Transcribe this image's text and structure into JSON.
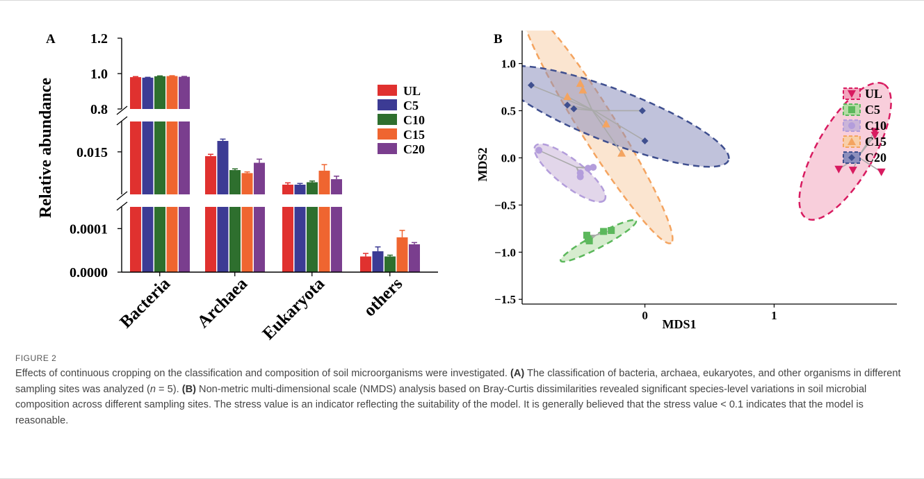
{
  "figure": {
    "label": "FIGURE 2",
    "caption": [
      {
        "t": "Effects of continuous cropping on the classification and composition of soil microorganisms were investigated. "
      },
      {
        "t": "(A)",
        "b": true
      },
      {
        "t": " The classification of bacteria, archaea, eukaryotes, and other organisms in different sampling sites was analyzed ("
      },
      {
        "t": "n",
        "i": true
      },
      {
        "t": " = 5). "
      },
      {
        "t": "(B)",
        "b": true
      },
      {
        "t": " Non-metric multi-dimensional scale (NMDS) analysis based on Bray-Curtis dissimilarities revealed significant species-level variations in soil microbial composition across different sampling sites. The stress value is an indicator reflecting the suitability of the model. It is generally believed that the stress value < 0.1 indicates that the model is reasonable."
      }
    ]
  },
  "groups": [
    "UL",
    "C5",
    "C10",
    "C15",
    "C20"
  ],
  "colors": {
    "bar": [
      "#e0312f",
      "#3c3b94",
      "#2e6f2e",
      "#ef6530",
      "#7a3e8e"
    ],
    "nmds_fill": [
      "#f2a5bd",
      "#b5dca5",
      "#cbb5d8",
      "#f8cfaa",
      "#8d8fbd"
    ],
    "nmds_stroke": [
      "#d81b60",
      "#5cb85c",
      "#b39ddb",
      "#f4a460",
      "#3f4f8f"
    ]
  },
  "chart_data": [
    {
      "panel": "A",
      "type": "bar",
      "ylabel": "Relative abundance",
      "categories": [
        "Bacteria",
        "Archaea",
        "Eukaryota",
        "others"
      ],
      "broken_axis": true,
      "segments": [
        {
          "ylim": [
            0.8,
            1.2
          ],
          "ticks": [
            "0.8",
            "1.0",
            "1.2"
          ]
        },
        {
          "ylim": [
            0.008,
            0.02
          ],
          "ticks": [
            "0.015"
          ]
        },
        {
          "ylim": [
            0,
            0.00015
          ],
          "ticks": [
            "0.0000",
            "0.0001"
          ]
        }
      ],
      "series": [
        {
          "name": "UL",
          "values": [
            0.98,
            0.0143,
            0.0096,
            3.6e-05
          ],
          "errors": [
            0.003,
            0.0003,
            0.0003,
            7e-06
          ]
        },
        {
          "name": "C5",
          "values": [
            0.977,
            0.0168,
            0.0096,
            4.8e-05
          ],
          "errors": [
            0.002,
            0.0003,
            0.0002,
            1e-05
          ]
        },
        {
          "name": "C10",
          "values": [
            0.985,
            0.012,
            0.01,
            3.6e-05
          ],
          "errors": [
            0.002,
            0.0002,
            0.0002,
            3e-06
          ]
        },
        {
          "name": "C15",
          "values": [
            0.986,
            0.0115,
            0.0119,
            8e-05
          ],
          "errors": [
            0.002,
            0.0002,
            0.001,
            1.6e-05
          ]
        },
        {
          "name": "C20",
          "values": [
            0.982,
            0.0132,
            0.0105,
            6.4e-05
          ],
          "errors": [
            0.002,
            0.0006,
            0.0005,
            4e-06
          ]
        }
      ],
      "legend_position": "right"
    },
    {
      "panel": "B",
      "type": "scatter",
      "xlabel": "MDS1",
      "ylabel": "MDS2",
      "xlim": [
        -0.95,
        1.95
      ],
      "ylim": [
        -1.55,
        1.35
      ],
      "xticks": [
        "0",
        "1"
      ],
      "yticks": [
        "1.0",
        "0.5",
        "0.0",
        "−0.5",
        "−1.0",
        "−1.5"
      ],
      "legend_position": "right",
      "series": [
        {
          "name": "UL",
          "marker": "triangle-down",
          "points": [
            [
              1.78,
              0.28
            ],
            [
              1.78,
              0.24
            ],
            [
              1.5,
              -0.12
            ],
            [
              1.61,
              -0.13
            ],
            [
              1.83,
              -0.15
            ]
          ],
          "centroid": [
            1.65,
            0.01
          ],
          "ellipse": {
            "center": [
              1.55,
              0.07
            ],
            "rx": 0.6,
            "ry": 0.3,
            "angle": 60
          }
        },
        {
          "name": "C5",
          "marker": "square",
          "points": [
            [
              -0.45,
              -0.82
            ],
            [
              -0.44,
              -0.86
            ],
            [
              -0.43,
              -0.88
            ],
            [
              -0.32,
              -0.78
            ],
            [
              -0.26,
              -0.77
            ]
          ],
          "centroid": [
            -0.38,
            -0.82
          ],
          "ellipse": {
            "center": [
              -0.36,
              -0.88
            ],
            "rx": 0.33,
            "ry": 0.07,
            "angle": 28
          }
        },
        {
          "name": "C10",
          "marker": "circle",
          "points": [
            [
              -0.82,
              0.08
            ],
            [
              -0.5,
              -0.16
            ],
            [
              -0.5,
              -0.2
            ],
            [
              -0.44,
              -0.11
            ],
            [
              -0.4,
              -0.1
            ]
          ],
          "centroid": [
            -0.53,
            -0.1
          ],
          "ellipse": {
            "center": [
              -0.58,
              -0.16
            ],
            "rx": 0.34,
            "ry": 0.14,
            "angle": -38
          }
        },
        {
          "name": "C15",
          "marker": "triangle-up",
          "points": [
            [
              -0.5,
              0.79
            ],
            [
              -0.48,
              0.72
            ],
            [
              -0.6,
              0.65
            ],
            [
              -0.18,
              0.05
            ],
            [
              -0.3,
              0.36
            ]
          ],
          "centroid": [
            -0.41,
            0.51
          ],
          "ellipse": {
            "center": [
              -0.37,
              0.35
            ],
            "rx": 1.08,
            "ry": 0.19,
            "angle": -58
          }
        },
        {
          "name": "C20",
          "marker": "diamond",
          "points": [
            [
              -0.88,
              0.77
            ],
            [
              -0.6,
              0.56
            ],
            [
              -0.55,
              0.52
            ],
            [
              -0.02,
              0.5
            ],
            [
              0.0,
              0.18
            ]
          ],
          "centroid": [
            -0.39,
            0.5
          ],
          "ellipse": {
            "center": [
              -0.24,
              0.44
            ],
            "rx": 0.95,
            "ry": 0.28,
            "angle": -21
          }
        }
      ]
    }
  ]
}
